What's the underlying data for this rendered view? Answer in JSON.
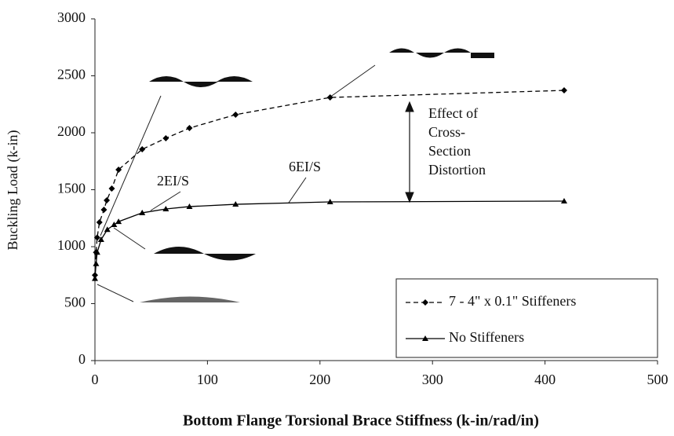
{
  "chart_data": {
    "type": "line",
    "xlabel": "Bottom Flange Torsional Brace Stiffness (k-in/rad/in)",
    "ylabel": "Buckling Load (k-in)",
    "xlim": [
      0,
      500
    ],
    "xticks": [
      0,
      100,
      200,
      300,
      400,
      500
    ],
    "ylim": [
      0,
      3000
    ],
    "yticks": [
      0,
      500,
      1000,
      1500,
      2000,
      2500,
      3000
    ],
    "grid": false,
    "legend": "lower right",
    "series": [
      {
        "name": "7 - 4\" x 0.1\" Stiffeners",
        "color": "#000000",
        "dash": true,
        "marker": "diamond",
        "x": [
          0,
          1,
          2,
          4,
          8,
          10.5,
          15,
          21,
          42,
          63,
          84,
          125,
          209,
          417
        ],
        "values": [
          750,
          950,
          1080,
          1214,
          1324,
          1407,
          1510,
          1676,
          1855,
          1952,
          2041,
          2159,
          2310,
          2372
        ]
      },
      {
        "name": "No Stiffeners",
        "color": "#000000",
        "dash": false,
        "marker": "triangle",
        "x": [
          0,
          1,
          2,
          5.5,
          11,
          17,
          21,
          42,
          63,
          84,
          125,
          209,
          417
        ],
        "values": [
          720,
          850,
          950,
          1062,
          1150,
          1193,
          1220,
          1297,
          1331,
          1352,
          1372,
          1393,
          1400
        ]
      }
    ],
    "annotations": {
      "a2": "2EI/S",
      "a6": "6EI/S",
      "effect": [
        "Effect of",
        "Cross-",
        "Section",
        "Distortion"
      ]
    }
  }
}
